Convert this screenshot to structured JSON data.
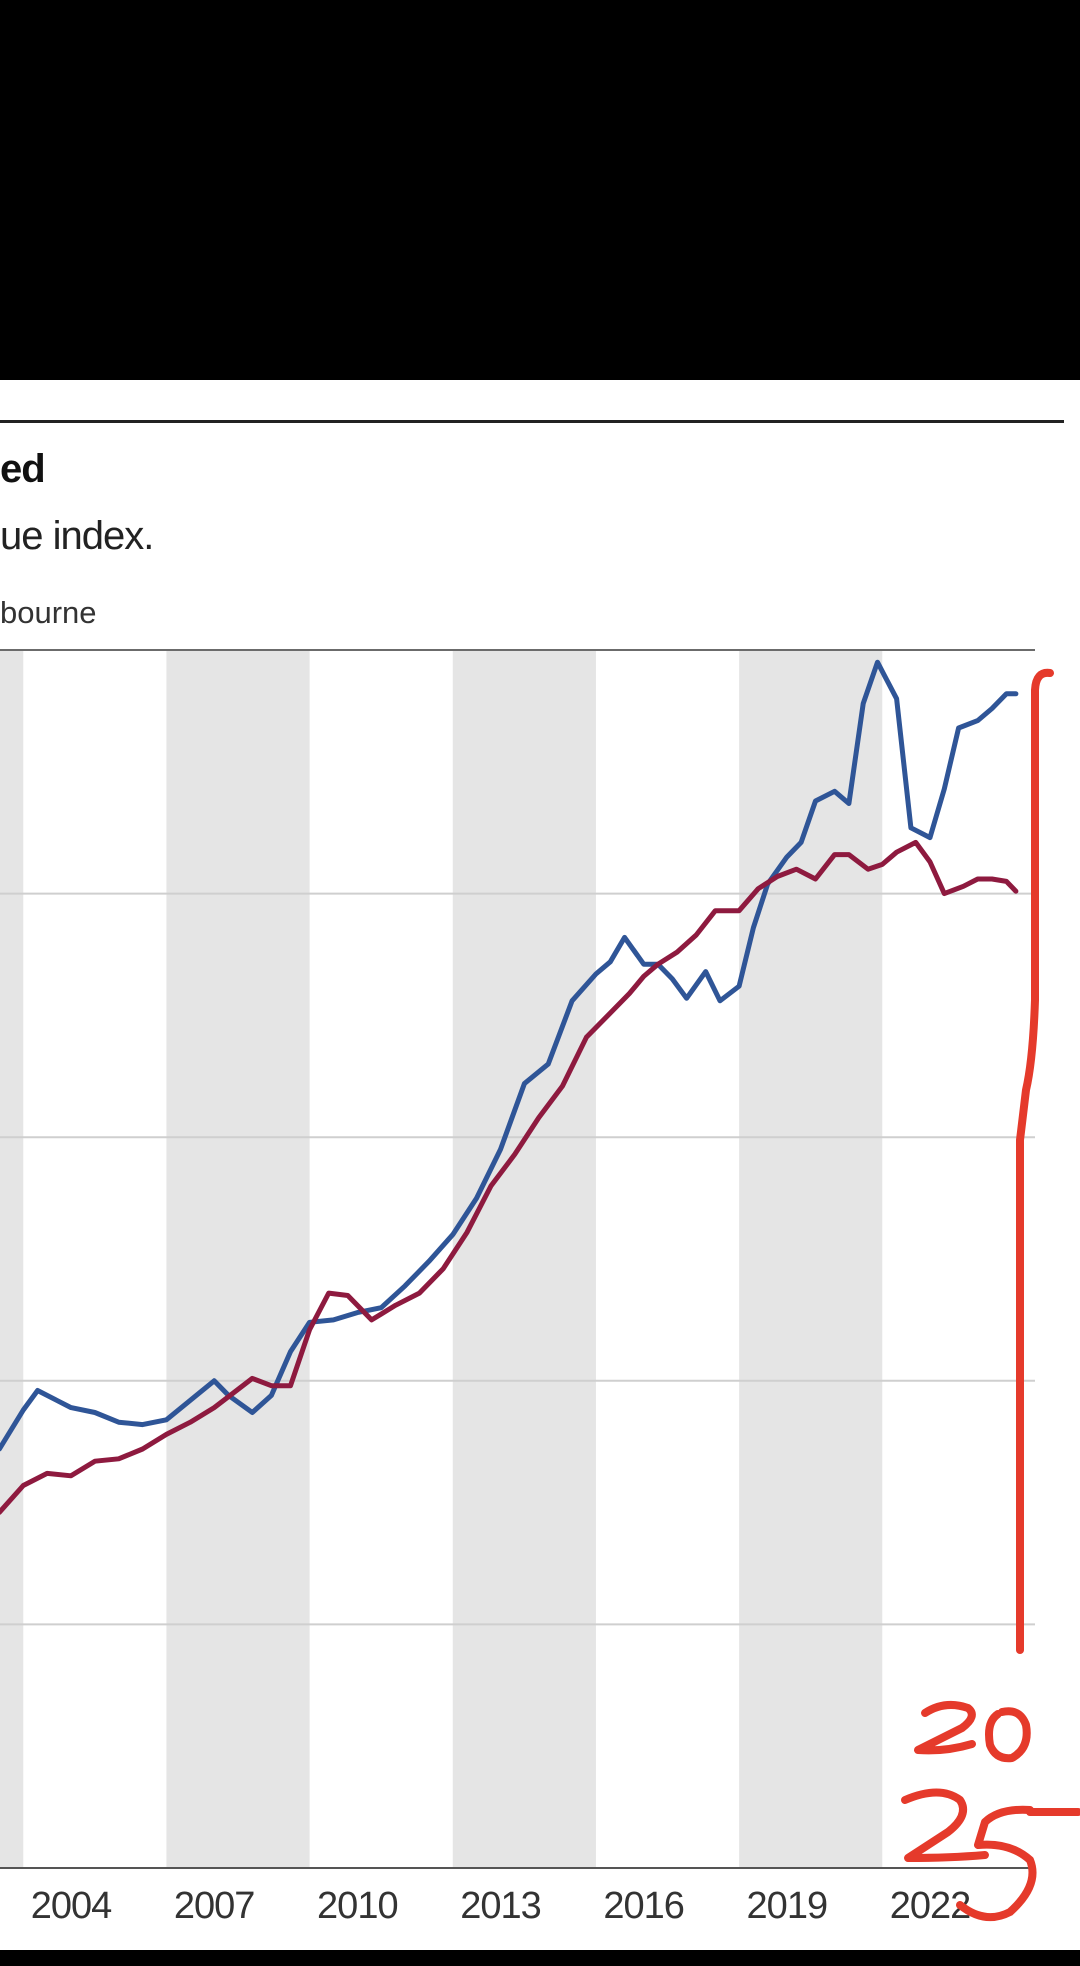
{
  "chart_data": {
    "type": "line",
    "title": "ed",
    "subtitle": "ue index.",
    "legend_fragment": "bourne",
    "x_tick_labels": [
      "2004",
      "2007",
      "2010",
      "2013",
      "2016",
      "2019",
      "2022"
    ],
    "x_range": [
      2002.5,
      2023.9
    ],
    "y_range": [
      0,
      5
    ],
    "gridlines": "horizontal",
    "shaded_periods": [
      [
        2001.0,
        2003.0
      ],
      [
        2006.0,
        2009.0
      ],
      [
        2012.0,
        2015.0
      ],
      [
        2018.0,
        2021.0
      ]
    ],
    "colors": {
      "shade": "#e5e5e5",
      "grid": "#cfcfcf",
      "axis": "#555555",
      "blue_series": "#2f5597",
      "red_series": "#8e1a3f",
      "annotation": "#e53a2b"
    },
    "series": [
      {
        "color_key": "blue_series",
        "x": [
          2002.5,
          2003.0,
          2003.3,
          2003.7,
          2004.0,
          2004.5,
          2005.0,
          2005.5,
          2006.0,
          2006.5,
          2007.0,
          2007.3,
          2007.8,
          2008.2,
          2008.6,
          2009.0,
          2009.5,
          2010.0,
          2010.5,
          2011.0,
          2011.5,
          2012.0,
          2012.5,
          2013.0,
          2013.5,
          2014.0,
          2014.5,
          2015.0,
          2015.3,
          2015.6,
          2016.0,
          2016.3,
          2016.6,
          2016.9,
          2017.3,
          2017.6,
          2018.0,
          2018.3,
          2018.6,
          2019.0,
          2019.3,
          2019.6,
          2020.0,
          2020.3,
          2020.6,
          2020.9,
          2021.3,
          2021.6,
          2022.0,
          2022.3,
          2022.6,
          2023.0,
          2023.3,
          2023.6,
          2023.8
        ],
        "values": [
          1.72,
          1.88,
          1.96,
          1.92,
          1.89,
          1.87,
          1.83,
          1.82,
          1.84,
          1.92,
          2.0,
          1.94,
          1.87,
          1.94,
          2.12,
          2.24,
          2.25,
          2.28,
          2.3,
          2.39,
          2.49,
          2.6,
          2.75,
          2.95,
          3.22,
          3.3,
          3.56,
          3.67,
          3.72,
          3.82,
          3.71,
          3.71,
          3.65,
          3.57,
          3.68,
          3.56,
          3.62,
          3.86,
          4.04,
          4.15,
          4.21,
          4.38,
          4.42,
          4.37,
          4.78,
          4.95,
          4.8,
          4.27,
          4.23,
          4.43,
          4.68,
          4.71,
          4.76,
          4.82,
          4.82
        ]
      },
      {
        "color_key": "red_series",
        "x": [
          2002.5,
          2003.0,
          2003.5,
          2004.0,
          2004.5,
          2005.0,
          2005.5,
          2006.0,
          2006.5,
          2007.0,
          2007.4,
          2007.8,
          2008.2,
          2008.6,
          2009.0,
          2009.4,
          2009.8,
          2010.3,
          2010.8,
          2011.3,
          2011.8,
          2012.3,
          2012.8,
          2013.3,
          2013.8,
          2014.3,
          2014.8,
          2015.3,
          2015.7,
          2016.0,
          2016.3,
          2016.7,
          2017.1,
          2017.5,
          2018.0,
          2018.4,
          2018.8,
          2019.2,
          2019.6,
          2020.0,
          2020.3,
          2020.7,
          2021.0,
          2021.3,
          2021.7,
          2022.0,
          2022.3,
          2022.7,
          2023.0,
          2023.3,
          2023.6,
          2023.8
        ],
        "values": [
          1.46,
          1.57,
          1.62,
          1.61,
          1.67,
          1.68,
          1.72,
          1.78,
          1.83,
          1.89,
          1.95,
          2.01,
          1.98,
          1.98,
          2.21,
          2.36,
          2.35,
          2.25,
          2.31,
          2.36,
          2.46,
          2.61,
          2.8,
          2.93,
          3.08,
          3.21,
          3.41,
          3.51,
          3.59,
          3.66,
          3.71,
          3.76,
          3.83,
          3.93,
          3.93,
          4.02,
          4.07,
          4.1,
          4.06,
          4.16,
          4.16,
          4.1,
          4.12,
          4.17,
          4.21,
          4.13,
          4.0,
          4.03,
          4.06,
          4.06,
          4.05,
          4.01
        ]
      }
    ]
  }
}
